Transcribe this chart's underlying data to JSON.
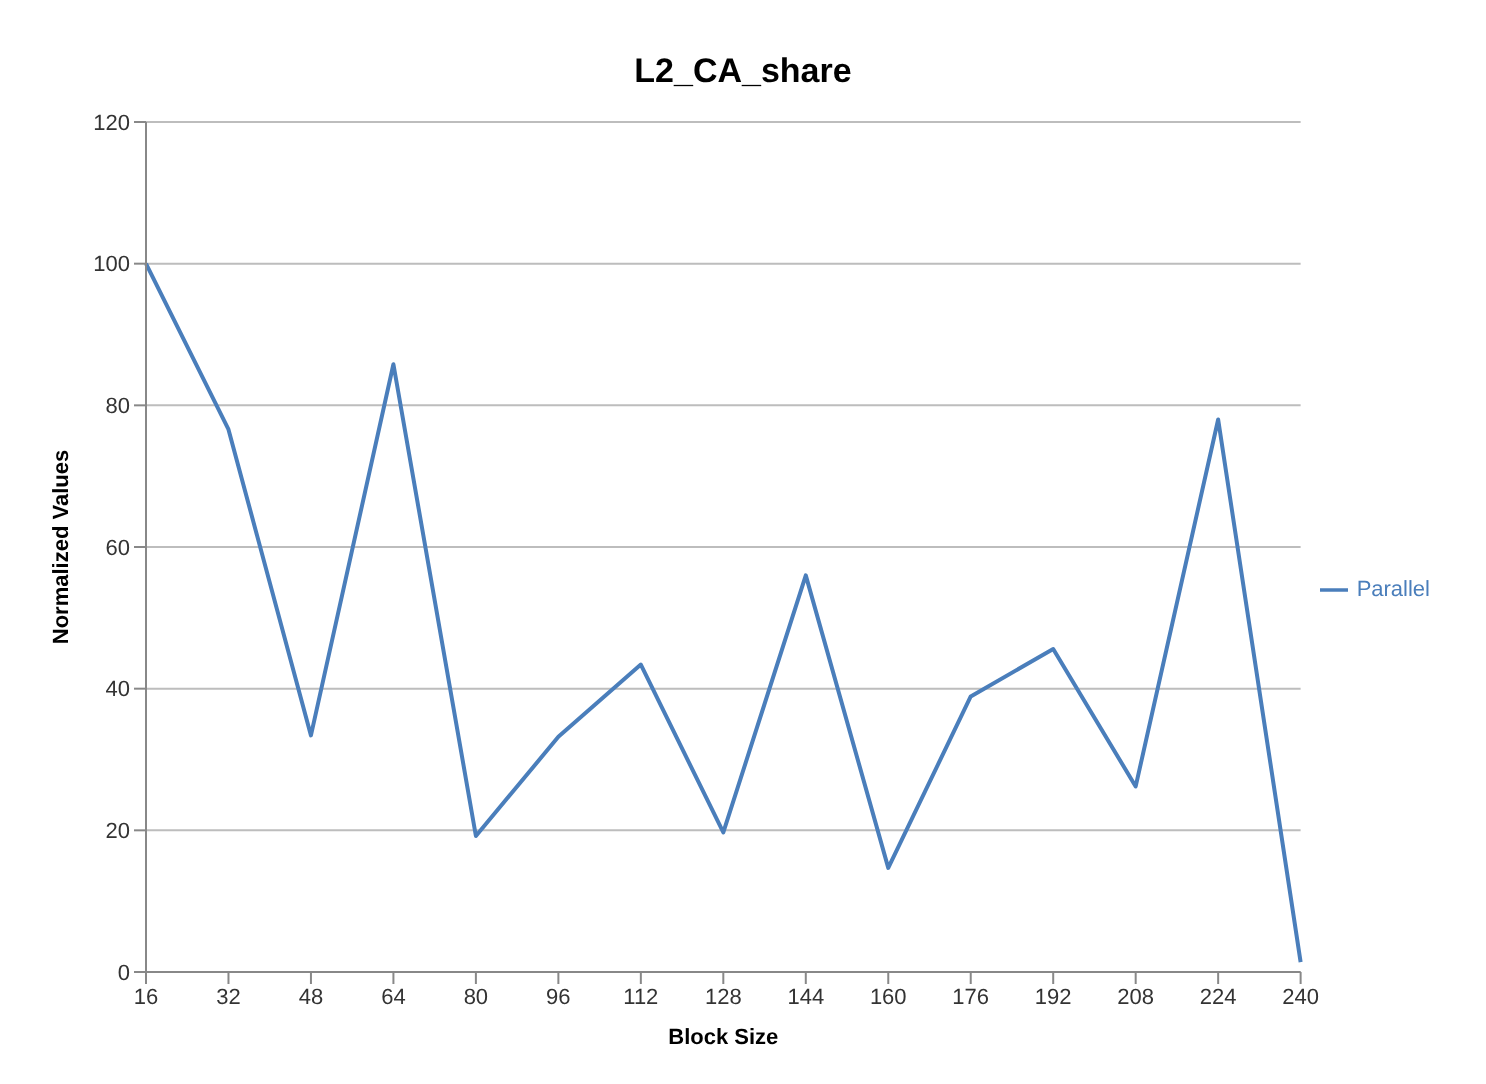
{
  "chart_data": {
    "type": "line",
    "title": "L2_CA_share",
    "xlabel": "Block Size",
    "ylabel": "Normalized Values",
    "categories": [
      "16",
      "32",
      "48",
      "64",
      "80",
      "96",
      "112",
      "128",
      "144",
      "160",
      "176",
      "192",
      "208",
      "224",
      "240"
    ],
    "series": [
      {
        "name": "Parallel",
        "color": "#4a7ebb",
        "values": [
          100,
          76.6,
          33.4,
          85.8,
          19.2,
          33.2,
          43.4,
          19.7,
          56,
          14.7,
          38.9,
          45.6,
          26.2,
          78,
          1.4
        ]
      }
    ],
    "ylim": [
      0,
      120
    ],
    "yticks": [
      0,
      20,
      40,
      60,
      80,
      100,
      120
    ],
    "grid": "y",
    "legend": "right",
    "marker": "none",
    "line_style": "solid"
  }
}
